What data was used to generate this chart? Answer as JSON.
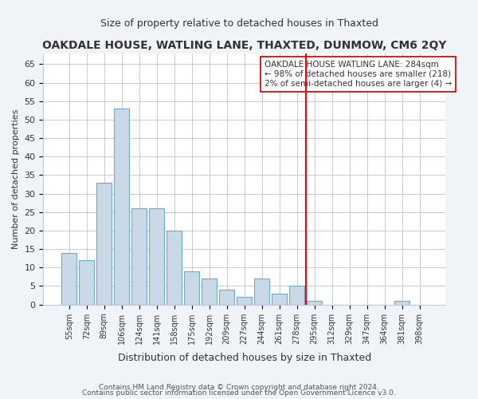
{
  "title": "OAKDALE HOUSE, WATLING LANE, THAXTED, DUNMOW, CM6 2QY",
  "subtitle": "Size of property relative to detached houses in Thaxted",
  "xlabel": "Distribution of detached houses by size in Thaxted",
  "ylabel": "Number of detached properties",
  "bar_labels": [
    "55sqm",
    "72sqm",
    "89sqm",
    "106sqm",
    "124sqm",
    "141sqm",
    "158sqm",
    "175sqm",
    "192sqm",
    "209sqm",
    "227sqm",
    "244sqm",
    "261sqm",
    "278sqm",
    "295sqm",
    "312sqm",
    "329sqm",
    "347sqm",
    "364sqm",
    "381sqm",
    "398sqm"
  ],
  "bar_values": [
    14,
    12,
    33,
    53,
    26,
    26,
    20,
    9,
    7,
    4,
    2,
    7,
    3,
    5,
    1,
    0,
    0,
    0,
    0,
    1,
    0
  ],
  "bar_color": "#c9d9e8",
  "bar_edgecolor": "#6aabcf",
  "vline_x": 14,
  "vline_color": "red",
  "ylim": [
    0,
    68
  ],
  "yticks": [
    0,
    5,
    10,
    15,
    20,
    25,
    30,
    35,
    40,
    45,
    50,
    55,
    60,
    65
  ],
  "annotation_title": "OAKDALE HOUSE WATLING LANE: 284sqm",
  "annotation_line1": "← 98% of detached houses are smaller (218)",
  "annotation_line2": "2% of semi-detached houses are larger (4) →",
  "footnote1": "Contains HM Land Registry data © Crown copyright and database right 2024.",
  "footnote2": "Contains public sector information licensed under the Open Government Licence v3.0.",
  "bg_color": "#f0f4f8",
  "plot_bg_color": "#ffffff",
  "grid_color": "#c0ccd8"
}
